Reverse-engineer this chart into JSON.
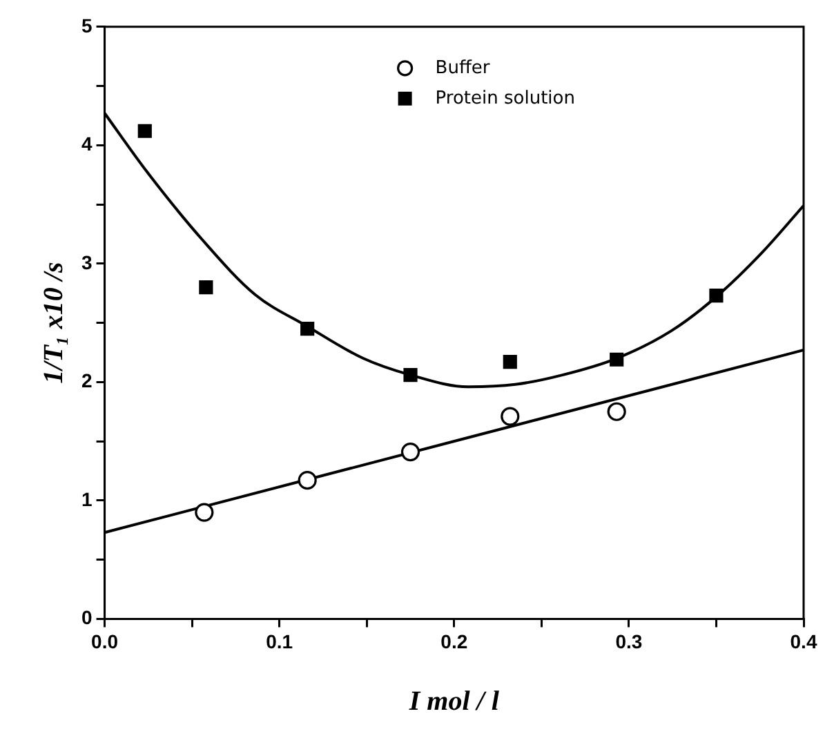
{
  "chart_data": {
    "type": "scatter",
    "xlabel": "I mol / l",
    "ylabel": "1/T₁ x10 /s",
    "xlim": [
      0,
      0.4
    ],
    "ylim": [
      0,
      5
    ],
    "xticks": [
      {
        "value": 0,
        "label": "0.0"
      },
      {
        "value": 0.05,
        "label": null
      },
      {
        "value": 0.1,
        "label": "0.1"
      },
      {
        "value": 0.15,
        "label": null
      },
      {
        "value": 0.2,
        "label": "0.2"
      },
      {
        "value": 0.25,
        "label": null
      },
      {
        "value": 0.3,
        "label": "0.3"
      },
      {
        "value": 0.35,
        "label": null
      },
      {
        "value": 0.4,
        "label": "0.4"
      }
    ],
    "yticks": [
      0,
      {
        "value": 0.5,
        "label": null
      },
      1,
      {
        "value": 1.5,
        "label": null
      },
      2,
      {
        "value": 2.5,
        "label": null
      },
      3,
      {
        "value": 3.5,
        "label": null
      },
      4,
      {
        "value": 4.5,
        "label": null
      },
      5
    ],
    "grid": false,
    "legend": "top",
    "series": [
      {
        "name": "Buffer",
        "type": "scatter",
        "marker": "circle",
        "color": "#000000",
        "x": [
          0.057,
          0.116,
          0.175,
          0.232,
          0.293
        ],
        "values": [
          0.9,
          1.17,
          1.41,
          1.71,
          1.75
        ]
      },
      {
        "name": "Protein solution",
        "type": "scatter",
        "marker": "square",
        "color": "#000000",
        "x": [
          0.023,
          0.058,
          0.116,
          0.175,
          0.232,
          0.293,
          0.35
        ],
        "values": [
          4.12,
          2.8,
          2.45,
          2.06,
          2.17,
          2.19,
          2.73
        ]
      },
      {
        "type": "line",
        "marker": "none",
        "color": "#000000",
        "x": [
          0,
          0.4
        ],
        "values": [
          0.73,
          2.27
        ]
      },
      {
        "type": "line",
        "marker": "none",
        "color": "#000000",
        "x": [
          0,
          0.024,
          0.056,
          0.086,
          0.116,
          0.148,
          0.175,
          0.208,
          0.235,
          0.262,
          0.293,
          0.324,
          0.35,
          0.376,
          0.4
        ],
        "values": [
          4.27,
          3.78,
          3.2,
          2.74,
          2.47,
          2.2,
          2.06,
          1.96,
          1.98,
          2.06,
          2.2,
          2.43,
          2.72,
          3.09,
          3.49
        ]
      }
    ]
  }
}
